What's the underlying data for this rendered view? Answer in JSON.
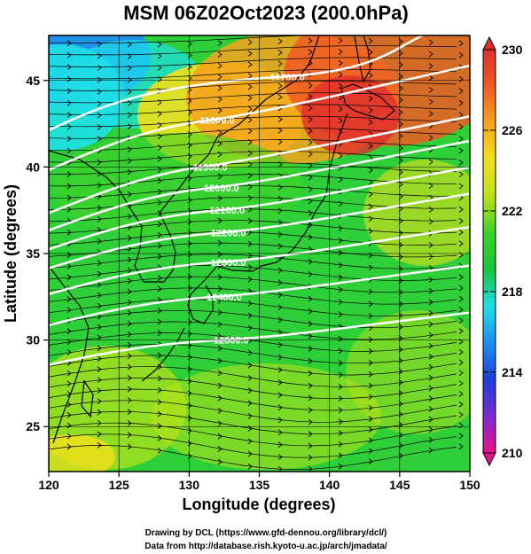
{
  "title": "MSM 06Z02Oct2023 (200.0hPa)",
  "xlabel": "Longitude (degrees)",
  "ylabel": "Latitude  (degrees)",
  "credits": [
    "Drawing by DCL (https://www.gfd-dennou.org/library/dcl/)",
    "Data from http://database.rish.kyoto-u.ac.jp/arch/jmadata/"
  ],
  "chart_data": {
    "type": "heatmap",
    "variable": "temperature",
    "x_ticks": [
      "120",
      "125",
      "130",
      "135",
      "140",
      "145",
      "150"
    ],
    "y_ticks": [
      "25",
      "30",
      "35",
      "40",
      "45"
    ],
    "xlim": [
      120,
      150
    ],
    "ylim": [
      22.4,
      47.6
    ],
    "colorbar": {
      "min": 210,
      "max": 230,
      "tick_labels": [
        "230",
        "226",
        "222",
        "218",
        "214",
        "210"
      ],
      "colors": [
        "#e8128c",
        "#7d2ad0",
        "#1f3fd8",
        "#1e8ef0",
        "#1ee0e8",
        "#18c43a",
        "#3fd22a",
        "#b9e21a",
        "#f2e01a",
        "#f7a21e",
        "#f15a24",
        "#e0302e"
      ]
    },
    "contour_levels": [
      {
        "label": "11700.0",
        "lon": 137.0,
        "lat": 45.2
      },
      {
        "label": "11800.0",
        "lon": 132.0,
        "lat": 42.7
      },
      {
        "label": "11900.0",
        "lon": 131.5,
        "lat": 40.0
      },
      {
        "label": "12000.0",
        "lon": 132.3,
        "lat": 38.8
      },
      {
        "label": "12100.0",
        "lon": 132.7,
        "lat": 37.5
      },
      {
        "label": "12200.0",
        "lon": 132.8,
        "lat": 36.2
      },
      {
        "label": "12300.0",
        "lon": 132.8,
        "lat": 34.5
      },
      {
        "label": "12400.0",
        "lon": 132.5,
        "lat": 32.5
      },
      {
        "label": "12500.0",
        "lon": 133.0,
        "lat": 30.0
      }
    ]
  }
}
